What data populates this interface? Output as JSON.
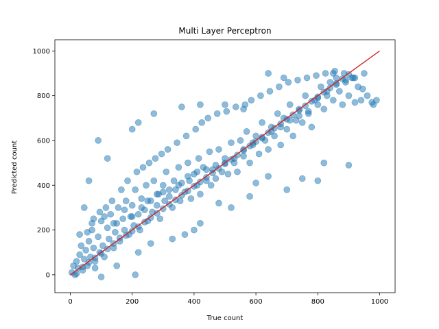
{
  "chart_data": {
    "type": "scatter",
    "title": "Multi Layer Perceptron",
    "xlabel": "True count",
    "ylabel": "Predicted count",
    "xlim": [
      -50,
      1050
    ],
    "ylim": [
      -80,
      1050
    ],
    "xticks": [
      0,
      200,
      400,
      600,
      800,
      1000
    ],
    "yticks": [
      0,
      200,
      400,
      600,
      800,
      1000
    ],
    "grid": false,
    "colors": {
      "points": "#1f77b4",
      "reference_line": "#d62728"
    },
    "reference_line": {
      "x": [
        0,
        1000
      ],
      "y": [
        0,
        1000
      ]
    },
    "series": [
      {
        "values": [
          [
            5,
            10
          ],
          [
            10,
            40
          ],
          [
            15,
            0
          ],
          [
            20,
            60
          ],
          [
            25,
            30
          ],
          [
            30,
            90
          ],
          [
            40,
            20
          ],
          [
            45,
            70
          ],
          [
            50,
            110
          ],
          [
            55,
            40
          ],
          [
            60,
            150
          ],
          [
            65,
            80
          ],
          [
            70,
            200
          ],
          [
            75,
            120
          ],
          [
            80,
            60
          ],
          [
            90,
            170
          ],
          [
            95,
            100
          ],
          [
            100,
            240
          ],
          [
            105,
            130
          ],
          [
            110,
            80
          ],
          [
            120,
            210
          ],
          [
            125,
            160
          ],
          [
            130,
            270
          ],
          [
            140,
            120
          ],
          [
            145,
            190
          ],
          [
            150,
            230
          ],
          [
            155,
            300
          ],
          [
            160,
            150
          ],
          [
            170,
            250
          ],
          [
            175,
            200
          ],
          [
            180,
            330
          ],
          [
            190,
            180
          ],
          [
            195,
            260
          ],
          [
            200,
            310
          ],
          [
            205,
            220
          ],
          [
            210,
            380
          ],
          [
            220,
            270
          ],
          [
            225,
            200
          ],
          [
            230,
            340
          ],
          [
            240,
            290
          ],
          [
            245,
            400
          ],
          [
            250,
            240
          ],
          [
            260,
            330
          ],
          [
            265,
            280
          ],
          [
            270,
            420
          ],
          [
            280,
            310
          ],
          [
            285,
            360
          ],
          [
            290,
            250
          ],
          [
            300,
            400
          ],
          [
            305,
            330
          ],
          [
            310,
            460
          ],
          [
            320,
            350
          ],
          [
            330,
            300
          ],
          [
            335,
            420
          ],
          [
            340,
            380
          ],
          [
            350,
            480
          ],
          [
            355,
            330
          ],
          [
            360,
            410
          ],
          [
            370,
            370
          ],
          [
            380,
            500
          ],
          [
            385,
            420
          ],
          [
            390,
            340
          ],
          [
            400,
            450
          ],
          [
            410,
            400
          ],
          [
            415,
            520
          ],
          [
            420,
            360
          ],
          [
            430,
            480
          ],
          [
            440,
            420
          ],
          [
            450,
            550
          ],
          [
            455,
            400
          ],
          [
            460,
            470
          ],
          [
            470,
            430
          ],
          [
            480,
            560
          ],
          [
            490,
            460
          ],
          [
            500,
            520
          ],
          [
            510,
            450
          ],
          [
            520,
            590
          ],
          [
            530,
            500
          ],
          [
            540,
            460
          ],
          [
            550,
            600
          ],
          [
            560,
            530
          ],
          [
            570,
            640
          ],
          [
            580,
            500
          ],
          [
            590,
            580
          ],
          [
            600,
            620
          ],
          [
            610,
            540
          ],
          [
            620,
            680
          ],
          [
            630,
            600
          ],
          [
            640,
            560
          ],
          [
            650,
            660
          ],
          [
            660,
            620
          ],
          [
            670,
            720
          ],
          [
            680,
            580
          ],
          [
            690,
            700
          ],
          [
            700,
            650
          ],
          [
            710,
            760
          ],
          [
            720,
            620
          ],
          [
            730,
            690
          ],
          [
            740,
            740
          ],
          [
            750,
            680
          ],
          [
            760,
            800
          ],
          [
            770,
            720
          ],
          [
            780,
            660
          ],
          [
            790,
            780
          ],
          [
            800,
            760
          ],
          [
            810,
            840
          ],
          [
            820,
            740
          ],
          [
            830,
            800
          ],
          [
            840,
            860
          ],
          [
            850,
            780
          ],
          [
            860,
            880
          ],
          [
            870,
            820
          ],
          [
            880,
            760
          ],
          [
            890,
            860
          ],
          [
            900,
            800
          ],
          [
            910,
            880
          ],
          [
            920,
            770
          ],
          [
            930,
            840
          ],
          [
            940,
            780
          ],
          [
            45,
            300
          ],
          [
            60,
            420
          ],
          [
            90,
            600
          ],
          [
            120,
            520
          ],
          [
            200,
            650
          ],
          [
            220,
            680
          ],
          [
            270,
            720
          ],
          [
            360,
            750
          ],
          [
            420,
            760
          ],
          [
            500,
            760
          ],
          [
            560,
            740
          ],
          [
            640,
            900
          ],
          [
            690,
            880
          ],
          [
            850,
            900
          ],
          [
            980,
            760
          ],
          [
            900,
            490
          ],
          [
            800,
            420
          ],
          [
            700,
            380
          ],
          [
            640,
            440
          ],
          [
            600,
            410
          ],
          [
            480,
            320
          ],
          [
            420,
            230
          ],
          [
            370,
            180
          ],
          [
            330,
            160
          ],
          [
            260,
            140
          ],
          [
            220,
            100
          ],
          [
            210,
            0
          ],
          [
            150,
            40
          ],
          [
            100,
            -10
          ],
          [
            80,
            30
          ],
          [
            400,
            200
          ],
          [
            520,
            300
          ],
          [
            580,
            350
          ],
          [
            750,
            430
          ],
          [
            820,
            500
          ],
          [
            35,
            130
          ],
          [
            55,
            190
          ],
          [
            75,
            250
          ],
          [
            95,
            280
          ],
          [
            115,
            300
          ],
          [
            135,
            330
          ],
          [
            165,
            380
          ],
          [
            185,
            420
          ],
          [
            215,
            460
          ],
          [
            235,
            480
          ],
          [
            255,
            500
          ],
          [
            275,
            520
          ],
          [
            295,
            540
          ],
          [
            315,
            560
          ],
          [
            345,
            590
          ],
          [
            375,
            620
          ],
          [
            405,
            650
          ],
          [
            425,
            680
          ],
          [
            445,
            700
          ],
          [
            475,
            720
          ],
          [
            505,
            730
          ],
          [
            535,
            750
          ],
          [
            565,
            760
          ],
          [
            585,
            780
          ],
          [
            615,
            800
          ],
          [
            645,
            820
          ],
          [
            675,
            840
          ],
          [
            705,
            860
          ],
          [
            735,
            870
          ],
          [
            765,
            880
          ],
          [
            795,
            890
          ],
          [
            825,
            900
          ],
          [
            855,
            910
          ],
          [
            885,
            900
          ],
          [
            915,
            880
          ],
          [
            945,
            830
          ],
          [
            960,
            800
          ],
          [
            975,
            770
          ],
          [
            990,
            780
          ],
          [
            30,
            180
          ],
          [
            70,
            230
          ],
          [
            110,
            260
          ],
          [
            140,
            230
          ],
          [
            175,
            290
          ],
          [
            200,
            260
          ],
          [
            230,
            300
          ],
          [
            250,
            330
          ],
          [
            280,
            360
          ],
          [
            300,
            370
          ],
          [
            320,
            380
          ],
          [
            350,
            400
          ],
          [
            380,
            440
          ],
          [
            410,
            460
          ],
          [
            440,
            470
          ],
          [
            470,
            490
          ],
          [
            500,
            500
          ],
          [
            530,
            520
          ],
          [
            560,
            560
          ],
          [
            590,
            590
          ],
          [
            620,
            610
          ],
          [
            650,
            640
          ],
          [
            680,
            660
          ],
          [
            710,
            690
          ],
          [
            740,
            710
          ],
          [
            770,
            730
          ],
          [
            800,
            790
          ],
          [
            830,
            820
          ],
          [
            860,
            850
          ],
          [
            890,
            870
          ],
          [
            920,
            880
          ],
          [
            950,
            900
          ],
          [
            20,
            5
          ],
          [
            40,
            35
          ],
          [
            60,
            55
          ],
          [
            80,
            75
          ],
          [
            100,
            95
          ],
          [
            120,
            115
          ],
          [
            140,
            140
          ],
          [
            160,
            165
          ],
          [
            180,
            175
          ],
          [
            200,
            195
          ],
          [
            220,
            215
          ],
          [
            240,
            235
          ],
          [
            260,
            255
          ],
          [
            280,
            275
          ],
          [
            300,
            295
          ],
          [
            320,
            315
          ],
          [
            340,
            335
          ],
          [
            360,
            355
          ],
          [
            380,
            375
          ],
          [
            400,
            395
          ],
          [
            420,
            415
          ],
          [
            440,
            435
          ],
          [
            460,
            455
          ],
          [
            480,
            475
          ],
          [
            500,
            495
          ],
          [
            520,
            515
          ],
          [
            540,
            535
          ],
          [
            560,
            555
          ],
          [
            580,
            575
          ],
          [
            600,
            595
          ],
          [
            620,
            615
          ],
          [
            640,
            635
          ],
          [
            660,
            655
          ],
          [
            680,
            675
          ],
          [
            700,
            695
          ],
          [
            720,
            715
          ],
          [
            740,
            735
          ],
          [
            760,
            755
          ],
          [
            780,
            775
          ],
          [
            800,
            795
          ],
          [
            820,
            815
          ],
          [
            840,
            835
          ],
          [
            860,
            855
          ],
          [
            880,
            875
          ],
          [
            900,
            895
          ]
        ]
      }
    ]
  }
}
